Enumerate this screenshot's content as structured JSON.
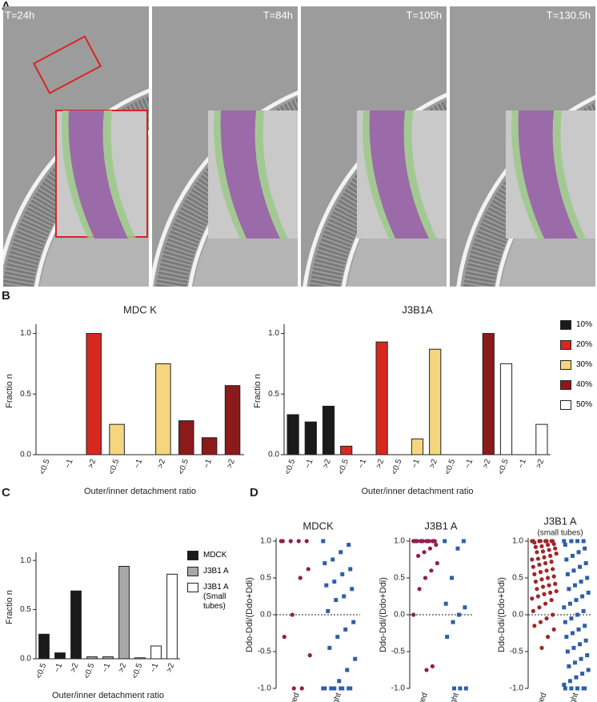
{
  "panel_labels": [
    "A",
    "B",
    "C",
    "D"
  ],
  "panel_a": {
    "time_labels": [
      "T=24h",
      "T=84h",
      "T=105h",
      "T=130.5h"
    ]
  },
  "chart_data": [
    {
      "type": "bar",
      "title": "MDC K",
      "xlabel": "Outer/inner detachment ratio",
      "ylabel": "Fractio n",
      "categories": [
        "<0.5",
        "~1",
        ">2",
        "<0.5",
        "~1",
        ">2",
        "<0.5",
        "~1",
        ">2"
      ],
      "series": [
        {
          "color": "#d7281f",
          "values": [
            0,
            0,
            1.0,
            null,
            null,
            null,
            null,
            null,
            null
          ]
        },
        {
          "color": "#f5d67f",
          "values": [
            null,
            null,
            null,
            0.25,
            0,
            0.75,
            null,
            null,
            null
          ]
        },
        {
          "color": "#8b1a1a",
          "values": [
            null,
            null,
            null,
            null,
            null,
            null,
            0.28,
            0.14,
            0.57
          ]
        }
      ],
      "ylim": [
        0,
        1.05
      ],
      "yticks": [
        {
          "value": 0,
          "label": "0.0"
        },
        0.5,
        {
          "value": 1,
          "label": "1.0"
        }
      ]
    },
    {
      "type": "bar",
      "title": "J3B1A",
      "xlabel": "Outer/inner detachment ratio",
      "ylabel": "Fractio n",
      "categories": [
        "<0.5",
        "~1",
        ">2",
        "<0.5",
        "~1",
        ">2",
        "<0.5",
        "~1",
        ">2",
        "<0.5",
        "~1",
        ">2",
        "<0.5",
        "~1",
        ">2"
      ],
      "series": [
        {
          "name": "10%",
          "color": "#1a1a1a",
          "values": [
            0.33,
            0.27,
            0.4,
            null,
            null,
            null,
            null,
            null,
            null,
            null,
            null,
            null,
            null,
            null,
            null
          ]
        },
        {
          "name": "20%",
          "color": "#d7281f",
          "values": [
            null,
            null,
            null,
            0.07,
            0,
            0.93,
            null,
            null,
            null,
            null,
            null,
            null,
            null,
            null,
            null
          ]
        },
        {
          "name": "30%",
          "color": "#f5d67f",
          "values": [
            null,
            null,
            null,
            null,
            null,
            null,
            0,
            0.13,
            0.87,
            null,
            null,
            null,
            null,
            null,
            null
          ]
        },
        {
          "name": "40%",
          "color": "#8b1a1a",
          "values": [
            null,
            null,
            null,
            null,
            null,
            null,
            null,
            null,
            null,
            0,
            0,
            1.0,
            null,
            null,
            null
          ]
        },
        {
          "name": "50%",
          "color": "#ffffff",
          "values": [
            null,
            null,
            null,
            null,
            null,
            null,
            null,
            null,
            null,
            null,
            null,
            null,
            0.75,
            0,
            0.25
          ]
        }
      ],
      "ylim": [
        0,
        1.05
      ],
      "yticks": [
        {
          "value": 0,
          "label": "0.0"
        },
        0.5,
        {
          "value": 1,
          "label": "1.0"
        }
      ],
      "legend": "right"
    },
    {
      "type": "bar",
      "xlabel": "Outer/inner detachment ratio",
      "ylabel": "Fractio n",
      "categories": [
        "<0.5",
        "~1",
        ">2",
        "<0.5",
        "~1",
        ">2",
        "<0.5",
        "~1",
        ">2"
      ],
      "series": [
        {
          "name": "MDCK",
          "color": "#1a1a1a",
          "values": [
            0.25,
            0.06,
            0.69,
            null,
            null,
            null,
            null,
            null,
            null
          ]
        },
        {
          "name": "J3B1 A",
          "color": "#a8a8a8",
          "values": [
            null,
            null,
            null,
            0.02,
            0.02,
            0.94,
            null,
            null,
            null
          ]
        },
        {
          "name": "J3B1 A (Small tubes)",
          "color": "#ffffff",
          "values": [
            null,
            null,
            null,
            null,
            null,
            null,
            0.01,
            0.13,
            0.86
          ]
        }
      ],
      "ylim": [
        0,
        1.05
      ],
      "yticks": [
        {
          "value": 0,
          "label": "0.0"
        },
        0.5,
        {
          "value": 1,
          "label": "1.0"
        }
      ],
      "legend": "right"
    },
    {
      "type": "strip",
      "title": "MDCK",
      "ylabel": "Ddo-Ddi/(Ddo+Ddi)",
      "categories": [
        "Curved",
        "Straight"
      ],
      "series": [
        {
          "color": "#8e1f4f",
          "marker": "circle",
          "values": [
            1,
            1,
            1,
            1,
            1,
            0.62,
            0.5,
            0,
            -0.3,
            -0.55,
            -1,
            -1
          ]
        },
        {
          "color": "#2e5fa8",
          "marker": "square",
          "values": [
            1,
            0.95,
            0.85,
            0.75,
            0.7,
            0.62,
            0.55,
            0.45,
            0.4,
            0.35,
            0.25,
            0.2,
            0.05,
            -0.1,
            -0.2,
            -0.3,
            -0.45,
            -0.6,
            -0.75,
            -0.9,
            -1,
            -1,
            -1,
            -1,
            -1,
            -1,
            -1,
            -1,
            -1
          ]
        }
      ],
      "ylim": [
        -1,
        1
      ],
      "yticks": [
        {
          "value": 1,
          "label": "1.0"
        },
        0.5,
        {
          "value": 0,
          "label": "0.0"
        },
        -0.5,
        {
          "value": -1,
          "label": "-1.0"
        }
      ],
      "hline": 0
    },
    {
      "type": "strip",
      "title": "J3B1 A",
      "ylabel": "Ddo-Ddi/(Ddo+Ddi)",
      "categories": [
        "Curved",
        "Straight"
      ],
      "series": [
        {
          "color": "#8e1f4f",
          "marker": "circle",
          "values": [
            1,
            1,
            1,
            1,
            1,
            1,
            1,
            1,
            1,
            1,
            1,
            1,
            1,
            0.95,
            0.9,
            0.85,
            0.8,
            0.7,
            0.6,
            0.5,
            0.35,
            0,
            -0.7,
            -0.75
          ]
        },
        {
          "color": "#2e5fa8",
          "marker": "square",
          "values": [
            1,
            1,
            0.9,
            0.5,
            0.15,
            0.1,
            0,
            -0.1,
            -0.3,
            -1,
            -1,
            -1
          ]
        }
      ],
      "ylim": [
        -1,
        1
      ],
      "yticks": [
        {
          "value": 1,
          "label": "1.0"
        },
        0.5,
        {
          "value": 0,
          "label": "0.0"
        },
        -0.5,
        {
          "value": -1,
          "label": "-1.0"
        }
      ],
      "hline": 0
    },
    {
      "type": "strip",
      "title": "J3B1 A",
      "subtitle": "(small tubes)",
      "ylabel": "Ddo-Ddi/(Ddo+Ddi)",
      "categories": [
        "Curved",
        "Straight"
      ],
      "series": [
        {
          "color": "#a0262a",
          "marker": "circle",
          "values": [
            1,
            1,
            1,
            1,
            1,
            1,
            1,
            1,
            0.98,
            0.96,
            0.95,
            0.93,
            0.92,
            0.9,
            0.88,
            0.86,
            0.85,
            0.83,
            0.8,
            0.78,
            0.76,
            0.75,
            0.72,
            0.7,
            0.68,
            0.65,
            0.62,
            0.6,
            0.58,
            0.55,
            0.52,
            0.5,
            0.48,
            0.45,
            0.42,
            0.4,
            0.38,
            0.35,
            0.32,
            0.3,
            0.28,
            0.25,
            0.22,
            0.2,
            0.15,
            0.1,
            0.05,
            0,
            -0.05,
            -0.1,
            -0.15,
            -0.2,
            -0.3,
            -0.45
          ]
        },
        {
          "color": "#2e5fa8",
          "marker": "square",
          "values": [
            1,
            1,
            1,
            1,
            0.95,
            0.9,
            0.85,
            0.8,
            0.75,
            0.7,
            0.65,
            0.6,
            0.55,
            0.5,
            0.45,
            0.4,
            0.35,
            0.3,
            0.25,
            0.2,
            0.15,
            0.1,
            0.05,
            0,
            -0.05,
            -0.1,
            -0.15,
            -0.2,
            -0.25,
            -0.3,
            -0.35,
            -0.4,
            -0.45,
            -0.5,
            -0.55,
            -0.6,
            -0.65,
            -0.7,
            -0.75,
            -0.8,
            -0.85,
            -0.9,
            -0.95,
            -1,
            -1,
            -1,
            -1,
            -1
          ]
        }
      ],
      "ylim": [
        -1,
        1
      ],
      "yticks": [
        {
          "value": 1,
          "label": "1.0"
        },
        0.5,
        {
          "value": 0,
          "label": "0.0"
        },
        -0.5,
        {
          "value": -1,
          "label": "-1.0"
        }
      ],
      "hline": 0
    }
  ]
}
